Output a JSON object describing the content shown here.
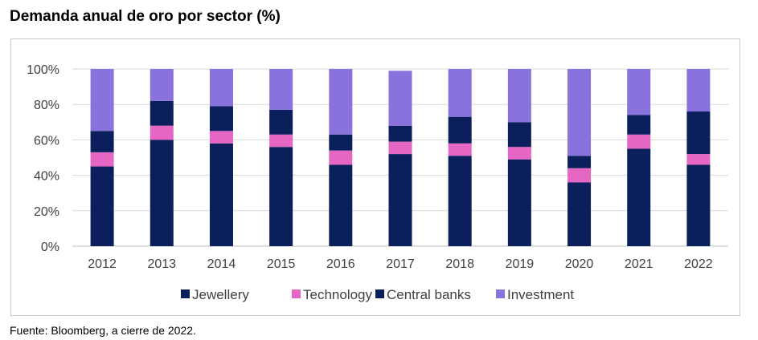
{
  "title": "Demanda anual de oro por sector (%)",
  "source": "Fuente: Bloomberg, a cierre de 2022.",
  "chart_data": {
    "type": "bar",
    "stacked": true,
    "categories": [
      "2012",
      "2013",
      "2014",
      "2015",
      "2016",
      "2017",
      "2018",
      "2019",
      "2020",
      "2021",
      "2022"
    ],
    "series": [
      {
        "name": "Jewellery",
        "color": "#0a1f5c",
        "values": [
          45,
          60,
          58,
          56,
          46,
          52,
          51,
          49,
          36,
          55,
          46
        ]
      },
      {
        "name": "Technology",
        "color": "#e667c3",
        "values": [
          8,
          8,
          7,
          7,
          8,
          7,
          7,
          7,
          8,
          8,
          6
        ]
      },
      {
        "name": "Central banks",
        "color": "#0a1f5c",
        "values": [
          12,
          14,
          14,
          14,
          9,
          9,
          15,
          14,
          7,
          11,
          24
        ]
      },
      {
        "name": "Investment",
        "color": "#8a72dc",
        "values": [
          35,
          18,
          21,
          23,
          37,
          31,
          27,
          30,
          49,
          26,
          24
        ]
      }
    ],
    "yticks": [
      "0%",
      "20%",
      "40%",
      "60%",
      "80%",
      "100%"
    ],
    "ylim": [
      0,
      100
    ],
    "legend_position": "bottom"
  }
}
